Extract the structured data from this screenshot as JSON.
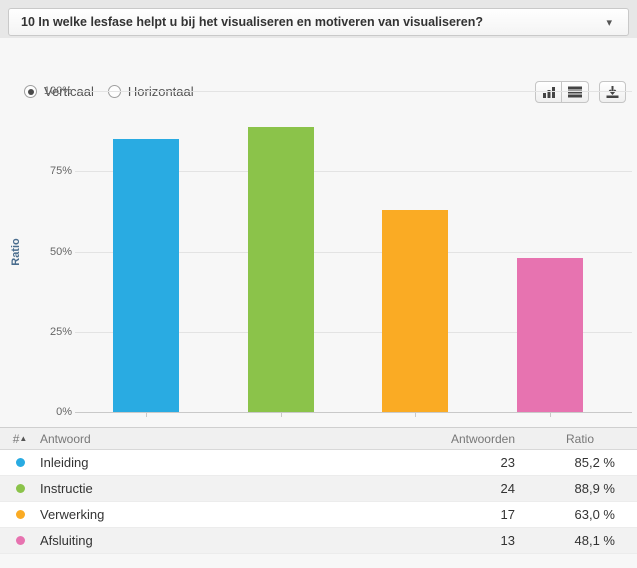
{
  "header": {
    "title": "10 In welke lesfase helpt u bij het visualiseren en motiveren van visualiseren?"
  },
  "toolbar": {
    "orientation_options": [
      {
        "label": "Verticaal",
        "selected": true
      },
      {
        "label": "Horizontaal",
        "selected": false
      }
    ],
    "icons": [
      "bar-chart",
      "horizontal-bars",
      "download"
    ]
  },
  "chart_data": {
    "type": "bar",
    "title": "",
    "xlabel": "",
    "ylabel": "Ratio",
    "ylim": [
      0,
      100
    ],
    "yticks": [
      "0%",
      "25%",
      "50%",
      "75%",
      "100%"
    ],
    "grid": true,
    "legend": false,
    "categories": [
      "Inleiding",
      "Instructie",
      "Verwerking",
      "Afsluiting"
    ],
    "values": [
      85.2,
      88.9,
      63.0,
      48.1
    ],
    "colors": [
      "#29abe2",
      "#8bc34a",
      "#faab24",
      "#e773b0"
    ]
  },
  "table": {
    "columns": {
      "index": "#",
      "answer": "Antwoord",
      "count": "Antwoorden",
      "ratio": "Ratio"
    },
    "rows": [
      {
        "color": "#29abe2",
        "answer": "Inleiding",
        "count": "23",
        "ratio": "85,2 %"
      },
      {
        "color": "#8bc34a",
        "answer": "Instructie",
        "count": "24",
        "ratio": "88,9 %"
      },
      {
        "color": "#faab24",
        "answer": "Verwerking",
        "count": "17",
        "ratio": "63,0 %"
      },
      {
        "color": "#e773b0",
        "answer": "Afsluiting",
        "count": "13",
        "ratio": "48,1 %"
      }
    ]
  }
}
